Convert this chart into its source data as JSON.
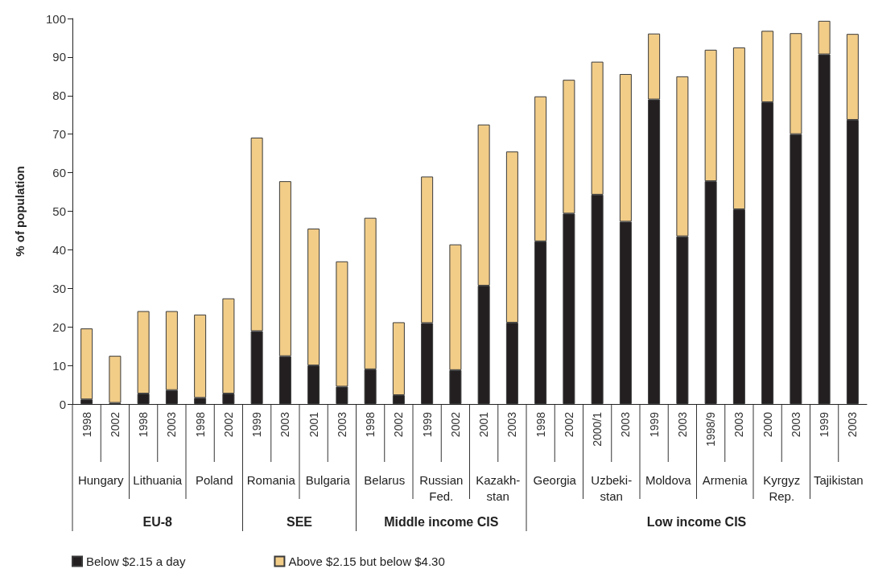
{
  "chart_data": {
    "type": "bar",
    "stacked": true,
    "ylabel": "% of population",
    "categories": [
      "1998",
      "2002",
      "1998",
      "2003",
      "1998",
      "2002",
      "1999",
      "2003",
      "2001",
      "2003",
      "1998",
      "2002",
      "1999",
      "2002",
      "2001",
      "2003",
      "1998",
      "2002",
      "2000/1",
      "2003",
      "1999",
      "2003",
      "1998/9",
      "2003",
      "2000",
      "2003",
      "1999",
      "2003"
    ],
    "series": [
      {
        "name": "Below $2.15 a day",
        "color": "#231f20",
        "values": [
          1.2,
          0.3,
          2.7,
          3.6,
          1.6,
          2.7,
          18.9,
          12.4,
          10.0,
          4.5,
          9.0,
          2.3,
          21.0,
          8.8,
          30.7,
          21.1,
          42.2,
          49.4,
          54.3,
          47.3,
          79.0,
          43.5,
          57.8,
          50.5,
          78.3,
          70.0,
          90.7,
          73.7
        ]
      },
      {
        "name": "Above $2.15 but below $4.30",
        "color": "#f2cd88",
        "values": [
          18.4,
          12.2,
          21.4,
          20.5,
          21.6,
          24.7,
          50.2,
          45.4,
          35.5,
          32.5,
          39.3,
          18.9,
          38.0,
          32.6,
          41.8,
          44.4,
          37.6,
          34.7,
          34.5,
          38.3,
          17.1,
          41.5,
          34.1,
          42.0,
          18.5,
          26.2,
          8.7,
          22.3
        ]
      }
    ],
    "annotations": [
      "Hungary",
      "Lithuania",
      "Poland",
      "Romania",
      "Bulgaria",
      "Belarus",
      "Russian\nFed.",
      "Kazakh-\nstan",
      "Georgia",
      "Uzbeki-\nstan",
      "Moldova",
      "Armenia",
      "Kyrgyz\nRep.",
      "Tajikistan",
      "EU-8",
      "SEE",
      "Middle income CIS",
      "Low income CIS"
    ],
    "ylim": [
      0,
      100
    ],
    "yticks": [
      0,
      10,
      20,
      30,
      40,
      50,
      60,
      70,
      80,
      90,
      100
    ],
    "legend": "bottom left"
  }
}
